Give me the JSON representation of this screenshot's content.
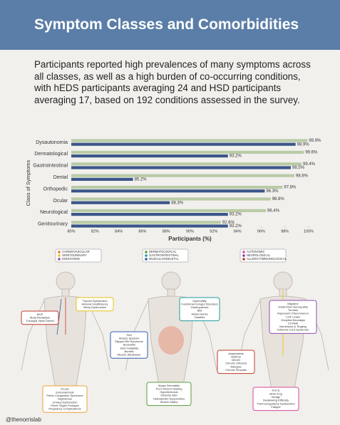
{
  "header": {
    "title": "Symptom Classes and Comorbidities"
  },
  "intro": "Participants reported high prevalences of many symptoms across all classes, as well as a high burden of co-occurring conditions, with hEDS participants averaging 24 and HSD participants averaging 17, based on 192 conditions assessed in the survey.",
  "chart_data": {
    "type": "hbar",
    "x_label": "Participants (%)",
    "y_label": "Class of Symptoms",
    "categories": [
      "Dysautonomia",
      "Dermatological",
      "Gastrointestinal",
      "Dental",
      "Orthopedic",
      "Ocular",
      "Neurological",
      "Genitourinary"
    ],
    "series": [
      {
        "color": "#b9cba6",
        "values": [
          99.9,
          99.6,
          99.4,
          98.8,
          97.8,
          96.8,
          96.4,
          92.6
        ],
        "value_labels": [
          "99.9%",
          "99.6%",
          "99.4%",
          "98.8%",
          "97.8%",
          "96.8%",
          "96.4%",
          "92.6%"
        ]
      },
      {
        "color": "#3b5689",
        "values": [
          98.9,
          93.2,
          98.5,
          85.2,
          96.3,
          88.3,
          93.2,
          93.2
        ],
        "value_labels": [
          "98.9%",
          "93.2%",
          "98.5%",
          "85.2%",
          "96.3%",
          "88.3%",
          "93.2%",
          "93.2%"
        ]
      }
    ],
    "xlim": [
      80,
      100
    ],
    "xticks": [
      {
        "value": 80,
        "label": "80%"
      },
      {
        "value": 82,
        "label": "82%"
      },
      {
        "value": 84,
        "label": "84%"
      },
      {
        "value": 86,
        "label": "86%"
      },
      {
        "value": 88,
        "label": "88%"
      },
      {
        "value": 90,
        "label": "90%"
      },
      {
        "value": 92,
        "label": "92%"
      },
      {
        "value": 94,
        "label": "94%"
      },
      {
        "value": 96,
        "label": "96%"
      },
      {
        "value": 98,
        "label": "98%"
      },
      {
        "value": 100,
        "label": "100%"
      }
    ]
  },
  "figure": {
    "panels": [
      {
        "legend": [
          "CARDIOVASCULAR",
          "GENITOURINARY",
          "ENDOCRINE"
        ]
      },
      {
        "legend": [
          "DERMATOLOGICAL",
          "GASTROINTESTINAL",
          "MUSCULOSKELETAL"
        ]
      },
      {
        "legend": [
          "AUTONOMIC",
          "NEUROLOGICAL",
          "ALLERGY/IMMUNOLOGICAL"
        ]
      }
    ],
    "callouts": [
      {
        "lines": [
          "Thyroid Dysfunction",
          "Adrenal Insufficiency",
          "Sleep Dysfunction"
        ]
      },
      {
        "lines": [
          "MVP",
          "Atrial Fibrillation",
          "Tricuspid Valve Defect"
        ]
      },
      {
        "lines": [
          "PCOS",
          "Endometriosis",
          "Pelvic Congestion Syndrome",
          "Vaginismus",
          "Urinary Dysfunction",
          "Pelvic Organ Prolapse",
          "Pregnancy Complications"
        ]
      },
      {
        "lines": [
          "Dysmotility",
          "Functional Foregut Disorders",
          "Gastroparesis",
          "IBS",
          "Hiatal Hernia",
          "Gastritis"
        ]
      },
      {
        "lines": [
          "TMJ",
          "Muscle Spasms",
          "Slipped Rib Syndrome",
          "Tendonitis",
          "Joint Instability",
          "Bursitis",
          "Muscle Weakness"
        ]
      },
      {
        "lines": [
          "Atopic Dermatitis",
          "Poor Wound Healing",
          "Hypertrichosis",
          "Stretchy Skin",
          "Hidradenitis Suppurativa",
          "Stretch Marks"
        ]
      },
      {
        "lines": [
          "Migraine",
          "Small Fiber Neuropathy",
          "Tinnitus",
          "Raynaud's Phenomenon",
          "CSF Leaks",
          "Occipital Neuralgia",
          "CCI/AAI",
          "Numbness & Tingling",
          "Tethered Cord Syndrome"
        ]
      },
      {
        "lines": [
          "Anaphylaxis",
          "Asthma",
          "MCAS",
          "Chronic Urticaria",
          "Allergies",
          "Chronic Sinusitis"
        ]
      },
      {
        "lines": [
          "POTS",
          "Brain Fog",
          "Vertigo",
          "Swallowing Difficulty",
          "Thermoregulatory Dysfunction",
          "Fatigue"
        ]
      }
    ]
  },
  "footer": "@thenorrislab"
}
